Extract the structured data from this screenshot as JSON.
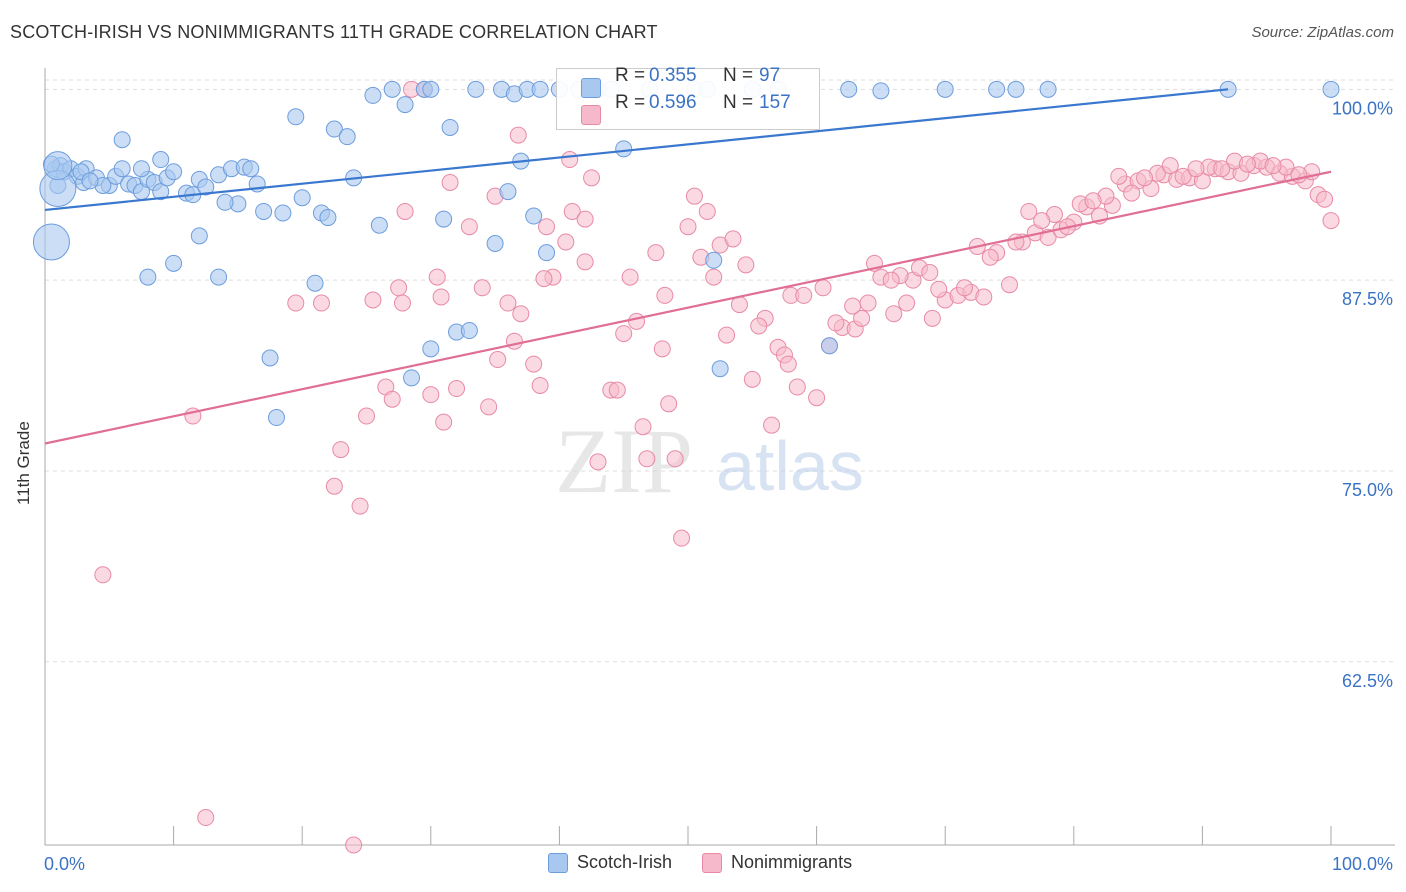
{
  "header": {
    "title": "SCOTCH-IRISH VS NONIMMIGRANTS 11TH GRADE CORRELATION CHART",
    "source": "Source: ZipAtlas.com"
  },
  "watermark": {
    "zip": "ZIP",
    "atlas": "atlas"
  },
  "stats": {
    "blue": {
      "r_label": "R =",
      "r": "0.355",
      "n_label": "N =",
      "n": "97"
    },
    "pink": {
      "r_label": "R =",
      "r": "0.596",
      "n_label": "N =",
      "n": "157"
    }
  },
  "legend": {
    "blue": "Scotch-Irish",
    "pink": "Nonimmigrants"
  },
  "colors": {
    "blue_fill": "#a9c8f0",
    "blue_stroke": "#6d9ddd",
    "blue_line": "#3a78d0",
    "pink_fill": "#f6b9cb",
    "pink_stroke": "#e88aa6",
    "pink_line": "#e06e95",
    "tick_text": "#3b73c4",
    "grid": "#dddddd"
  },
  "chart_data": {
    "type": "scatter",
    "title": "SCOTCH-IRISH VS NONIMMIGRANTS 11TH GRADE CORRELATION CHART",
    "xlabel": "",
    "ylabel": "11th Grade",
    "xlim": [
      0,
      100
    ],
    "ylim": [
      50.5,
      101.2
    ],
    "x_tick_labels": [
      "0.0%",
      "100.0%"
    ],
    "y_ticks": [
      {
        "value": 100.0,
        "label": "100.0%"
      },
      {
        "value": 87.5,
        "label": "87.5%"
      },
      {
        "value": 75.0,
        "label": "75.0%"
      },
      {
        "value": 62.5,
        "label": "62.5%"
      }
    ],
    "grid": true,
    "legend_position": "bottom-center",
    "series": [
      {
        "name": "Scotch-Irish",
        "color": "#6d9ddd",
        "trend": {
          "x": [
            0,
            92
          ],
          "y": [
            92.1,
            100.0
          ]
        },
        "points": [
          [
            0.8,
            94.8
          ],
          [
            1.2,
            95.0
          ],
          [
            1.5,
            94.6
          ],
          [
            2.0,
            94.8
          ],
          [
            2.5,
            94.3
          ],
          [
            3.0,
            93.9
          ],
          [
            3.2,
            94.8
          ],
          [
            4.0,
            94.2
          ],
          [
            5.0,
            93.7
          ],
          [
            5.5,
            94.3
          ],
          [
            6.0,
            94.8
          ],
          [
            6.5,
            93.8
          ],
          [
            7.0,
            93.7
          ],
          [
            7.5,
            93.3
          ],
          [
            8.0,
            94.1
          ],
          [
            8.5,
            93.9
          ],
          [
            9.0,
            93.3
          ],
          [
            9.5,
            94.2
          ],
          [
            10.0,
            94.6
          ],
          [
            11.0,
            93.2
          ],
          [
            11.5,
            93.1
          ],
          [
            12.0,
            94.1
          ],
          [
            12.5,
            93.6
          ],
          [
            13.5,
            94.4
          ],
          [
            14.5,
            94.8
          ],
          [
            15.5,
            94.9
          ],
          [
            16.0,
            94.8
          ],
          [
            17.0,
            92.0
          ],
          [
            18.5,
            91.9
          ],
          [
            19.5,
            98.2
          ],
          [
            20.0,
            92.9
          ],
          [
            21.5,
            91.9
          ],
          [
            22.0,
            91.6
          ],
          [
            22.5,
            97.4
          ],
          [
            23.5,
            96.9
          ],
          [
            24.0,
            94.2
          ],
          [
            25.5,
            99.6
          ],
          [
            26.0,
            91.1
          ],
          [
            27.0,
            100.0
          ],
          [
            28.0,
            99.0
          ],
          [
            29.5,
            100.0
          ],
          [
            30.0,
            100.0
          ],
          [
            31.0,
            91.5
          ],
          [
            31.5,
            97.5
          ],
          [
            32.0,
            84.1
          ],
          [
            33.5,
            100.0
          ],
          [
            35.5,
            100.0
          ],
          [
            36.0,
            93.3
          ],
          [
            36.5,
            99.7
          ],
          [
            37.5,
            100.0
          ],
          [
            38.0,
            91.7
          ],
          [
            38.5,
            100.0
          ],
          [
            39.0,
            89.3
          ],
          [
            40.0,
            100.0
          ],
          [
            41.5,
            100.0
          ],
          [
            43.0,
            100.0
          ],
          [
            44.0,
            100.0
          ],
          [
            45.0,
            96.1
          ],
          [
            47.0,
            100.0
          ],
          [
            50.5,
            100.0
          ],
          [
            51.5,
            100.0
          ],
          [
            52.0,
            88.8
          ],
          [
            52.5,
            81.7
          ],
          [
            55.0,
            100.0
          ],
          [
            57.0,
            100.0
          ],
          [
            61.0,
            83.2
          ],
          [
            62.5,
            100.0
          ],
          [
            65.0,
            99.9
          ],
          [
            70.0,
            100.0
          ],
          [
            74.0,
            100.0
          ],
          [
            75.5,
            100.0
          ],
          [
            78.0,
            100.0
          ],
          [
            92.0,
            100.0
          ],
          [
            100.0,
            100.0
          ],
          [
            8.0,
            87.7
          ],
          [
            13.5,
            87.7
          ],
          [
            15.0,
            92.5
          ],
          [
            10.0,
            88.6
          ],
          [
            12.0,
            90.4
          ],
          [
            17.5,
            82.4
          ],
          [
            18.0,
            78.5
          ],
          [
            21.0,
            87.3
          ],
          [
            28.5,
            81.1
          ],
          [
            30.0,
            83.0
          ],
          [
            33.0,
            84.2
          ],
          [
            35.0,
            89.9
          ],
          [
            37.0,
            95.3
          ],
          [
            7.5,
            94.8
          ],
          [
            6.0,
            96.7
          ],
          [
            4.5,
            93.7
          ],
          [
            2.8,
            94.6
          ],
          [
            1.0,
            93.7
          ],
          [
            0.5,
            95.1
          ],
          [
            3.5,
            94.0
          ],
          [
            9.0,
            95.4
          ],
          [
            14.0,
            92.6
          ],
          [
            16.5,
            93.8
          ]
        ],
        "large_points": [
          [
            1.0,
            93.5,
            18
          ],
          [
            0.5,
            90.0,
            18
          ],
          [
            1.0,
            95.0,
            14
          ]
        ]
      },
      {
        "name": "Nonimmigrants",
        "color": "#e88aa6",
        "trend": {
          "x": [
            0,
            100
          ],
          "y": [
            76.8,
            94.6
          ]
        },
        "points": [
          [
            4.5,
            68.2
          ],
          [
            11.5,
            78.6
          ],
          [
            12.5,
            52.3
          ],
          [
            19.5,
            86.0
          ],
          [
            21.5,
            86.0
          ],
          [
            22.5,
            74.0
          ],
          [
            23.0,
            76.4
          ],
          [
            24.0,
            50.5
          ],
          [
            24.5,
            72.7
          ],
          [
            25.0,
            78.6
          ],
          [
            25.5,
            86.2
          ],
          [
            26.5,
            80.5
          ],
          [
            27.0,
            79.7
          ],
          [
            27.5,
            87.0
          ],
          [
            28.0,
            92.0
          ],
          [
            28.5,
            100.0
          ],
          [
            29.5,
            100.0
          ],
          [
            30.0,
            80.0
          ],
          [
            30.5,
            87.7
          ],
          [
            31.0,
            78.2
          ],
          [
            32.0,
            80.4
          ],
          [
            33.0,
            91.0
          ],
          [
            34.0,
            87.0
          ],
          [
            35.0,
            93.0
          ],
          [
            36.0,
            86.0
          ],
          [
            36.5,
            83.5
          ],
          [
            37.0,
            85.3
          ],
          [
            38.0,
            82.0
          ],
          [
            38.5,
            80.6
          ],
          [
            39.0,
            91.0
          ],
          [
            39.5,
            87.7
          ],
          [
            40.5,
            90.0
          ],
          [
            41.0,
            92.0
          ],
          [
            42.0,
            88.7
          ],
          [
            42.5,
            94.2
          ],
          [
            43.0,
            75.6
          ],
          [
            44.0,
            80.3
          ],
          [
            44.5,
            80.3
          ],
          [
            45.0,
            84.0
          ],
          [
            45.5,
            87.7
          ],
          [
            46.0,
            84.8
          ],
          [
            46.5,
            77.9
          ],
          [
            47.5,
            89.3
          ],
          [
            48.0,
            83.0
          ],
          [
            48.5,
            79.4
          ],
          [
            49.0,
            75.8
          ],
          [
            49.5,
            70.6
          ],
          [
            50.0,
            91.0
          ],
          [
            50.5,
            93.0
          ],
          [
            51.0,
            89.0
          ],
          [
            52.0,
            87.7
          ],
          [
            52.5,
            89.8
          ],
          [
            53.0,
            83.9
          ],
          [
            54.0,
            85.9
          ],
          [
            54.5,
            88.5
          ],
          [
            55.0,
            81.0
          ],
          [
            56.0,
            85.0
          ],
          [
            56.5,
            78.0
          ],
          [
            57.0,
            83.1
          ],
          [
            57.5,
            82.6
          ],
          [
            58.0,
            86.5
          ],
          [
            59.0,
            86.5
          ],
          [
            60.0,
            79.8
          ],
          [
            60.5,
            87.0
          ],
          [
            61.0,
            83.2
          ],
          [
            62.0,
            84.4
          ],
          [
            63.0,
            84.3
          ],
          [
            64.0,
            86.0
          ],
          [
            64.5,
            88.6
          ],
          [
            65.0,
            87.7
          ],
          [
            66.0,
            85.3
          ],
          [
            67.0,
            86.0
          ],
          [
            67.5,
            87.5
          ],
          [
            68.0,
            88.3
          ],
          [
            69.0,
            85.0
          ],
          [
            70.0,
            86.2
          ],
          [
            71.0,
            86.5
          ],
          [
            72.0,
            86.7
          ],
          [
            73.0,
            86.4
          ],
          [
            74.0,
            89.3
          ],
          [
            75.0,
            87.2
          ],
          [
            76.0,
            90.0
          ],
          [
            77.0,
            90.6
          ],
          [
            78.0,
            90.3
          ],
          [
            79.0,
            90.8
          ],
          [
            80.0,
            91.3
          ],
          [
            81.0,
            92.3
          ],
          [
            82.0,
            91.7
          ],
          [
            83.0,
            92.4
          ],
          [
            84.0,
            93.8
          ],
          [
            85.0,
            94.0
          ],
          [
            86.0,
            93.5
          ],
          [
            87.0,
            94.4
          ],
          [
            88.0,
            94.1
          ],
          [
            89.0,
            94.2
          ],
          [
            90.0,
            94.0
          ],
          [
            91.0,
            94.8
          ],
          [
            92.0,
            94.6
          ],
          [
            93.0,
            94.5
          ],
          [
            94.0,
            95.0
          ],
          [
            95.0,
            94.9
          ],
          [
            96.0,
            94.5
          ],
          [
            97.0,
            94.3
          ],
          [
            98.0,
            94.0
          ],
          [
            99.0,
            93.1
          ],
          [
            100.0,
            91.4
          ],
          [
            27.8,
            86.0
          ],
          [
            31.5,
            93.9
          ],
          [
            34.5,
            79.2
          ],
          [
            38.8,
            87.6
          ],
          [
            40.8,
            95.4
          ],
          [
            46.8,
            75.8
          ],
          [
            51.5,
            92.0
          ],
          [
            55.5,
            84.5
          ],
          [
            58.5,
            80.5
          ],
          [
            61.5,
            84.7
          ],
          [
            63.5,
            85.0
          ],
          [
            66.5,
            87.8
          ],
          [
            69.5,
            86.9
          ],
          [
            71.5,
            87.0
          ],
          [
            73.5,
            89.0
          ],
          [
            75.5,
            90.0
          ],
          [
            76.5,
            92.0
          ],
          [
            78.5,
            91.8
          ],
          [
            80.5,
            92.5
          ],
          [
            82.5,
            93.0
          ],
          [
            84.5,
            93.2
          ],
          [
            86.5,
            94.5
          ],
          [
            88.5,
            94.3
          ],
          [
            90.5,
            94.9
          ],
          [
            92.5,
            95.3
          ],
          [
            94.5,
            95.3
          ],
          [
            96.5,
            94.9
          ],
          [
            98.5,
            94.6
          ],
          [
            99.5,
            92.8
          ],
          [
            36.8,
            97.0
          ],
          [
            42.0,
            91.5
          ],
          [
            48.2,
            86.5
          ],
          [
            53.5,
            90.2
          ],
          [
            57.8,
            82.0
          ],
          [
            62.8,
            85.8
          ],
          [
            65.8,
            87.5
          ],
          [
            68.8,
            88.0
          ],
          [
            72.5,
            89.7
          ],
          [
            77.5,
            91.4
          ],
          [
            79.5,
            91.0
          ],
          [
            81.5,
            92.7
          ],
          [
            83.5,
            94.3
          ],
          [
            85.5,
            94.2
          ],
          [
            87.5,
            95.0
          ],
          [
            89.5,
            94.8
          ],
          [
            91.5,
            94.8
          ],
          [
            93.5,
            95.1
          ],
          [
            95.5,
            95.0
          ],
          [
            97.5,
            94.4
          ],
          [
            30.8,
            86.4
          ],
          [
            35.2,
            82.3
          ]
        ]
      }
    ]
  }
}
